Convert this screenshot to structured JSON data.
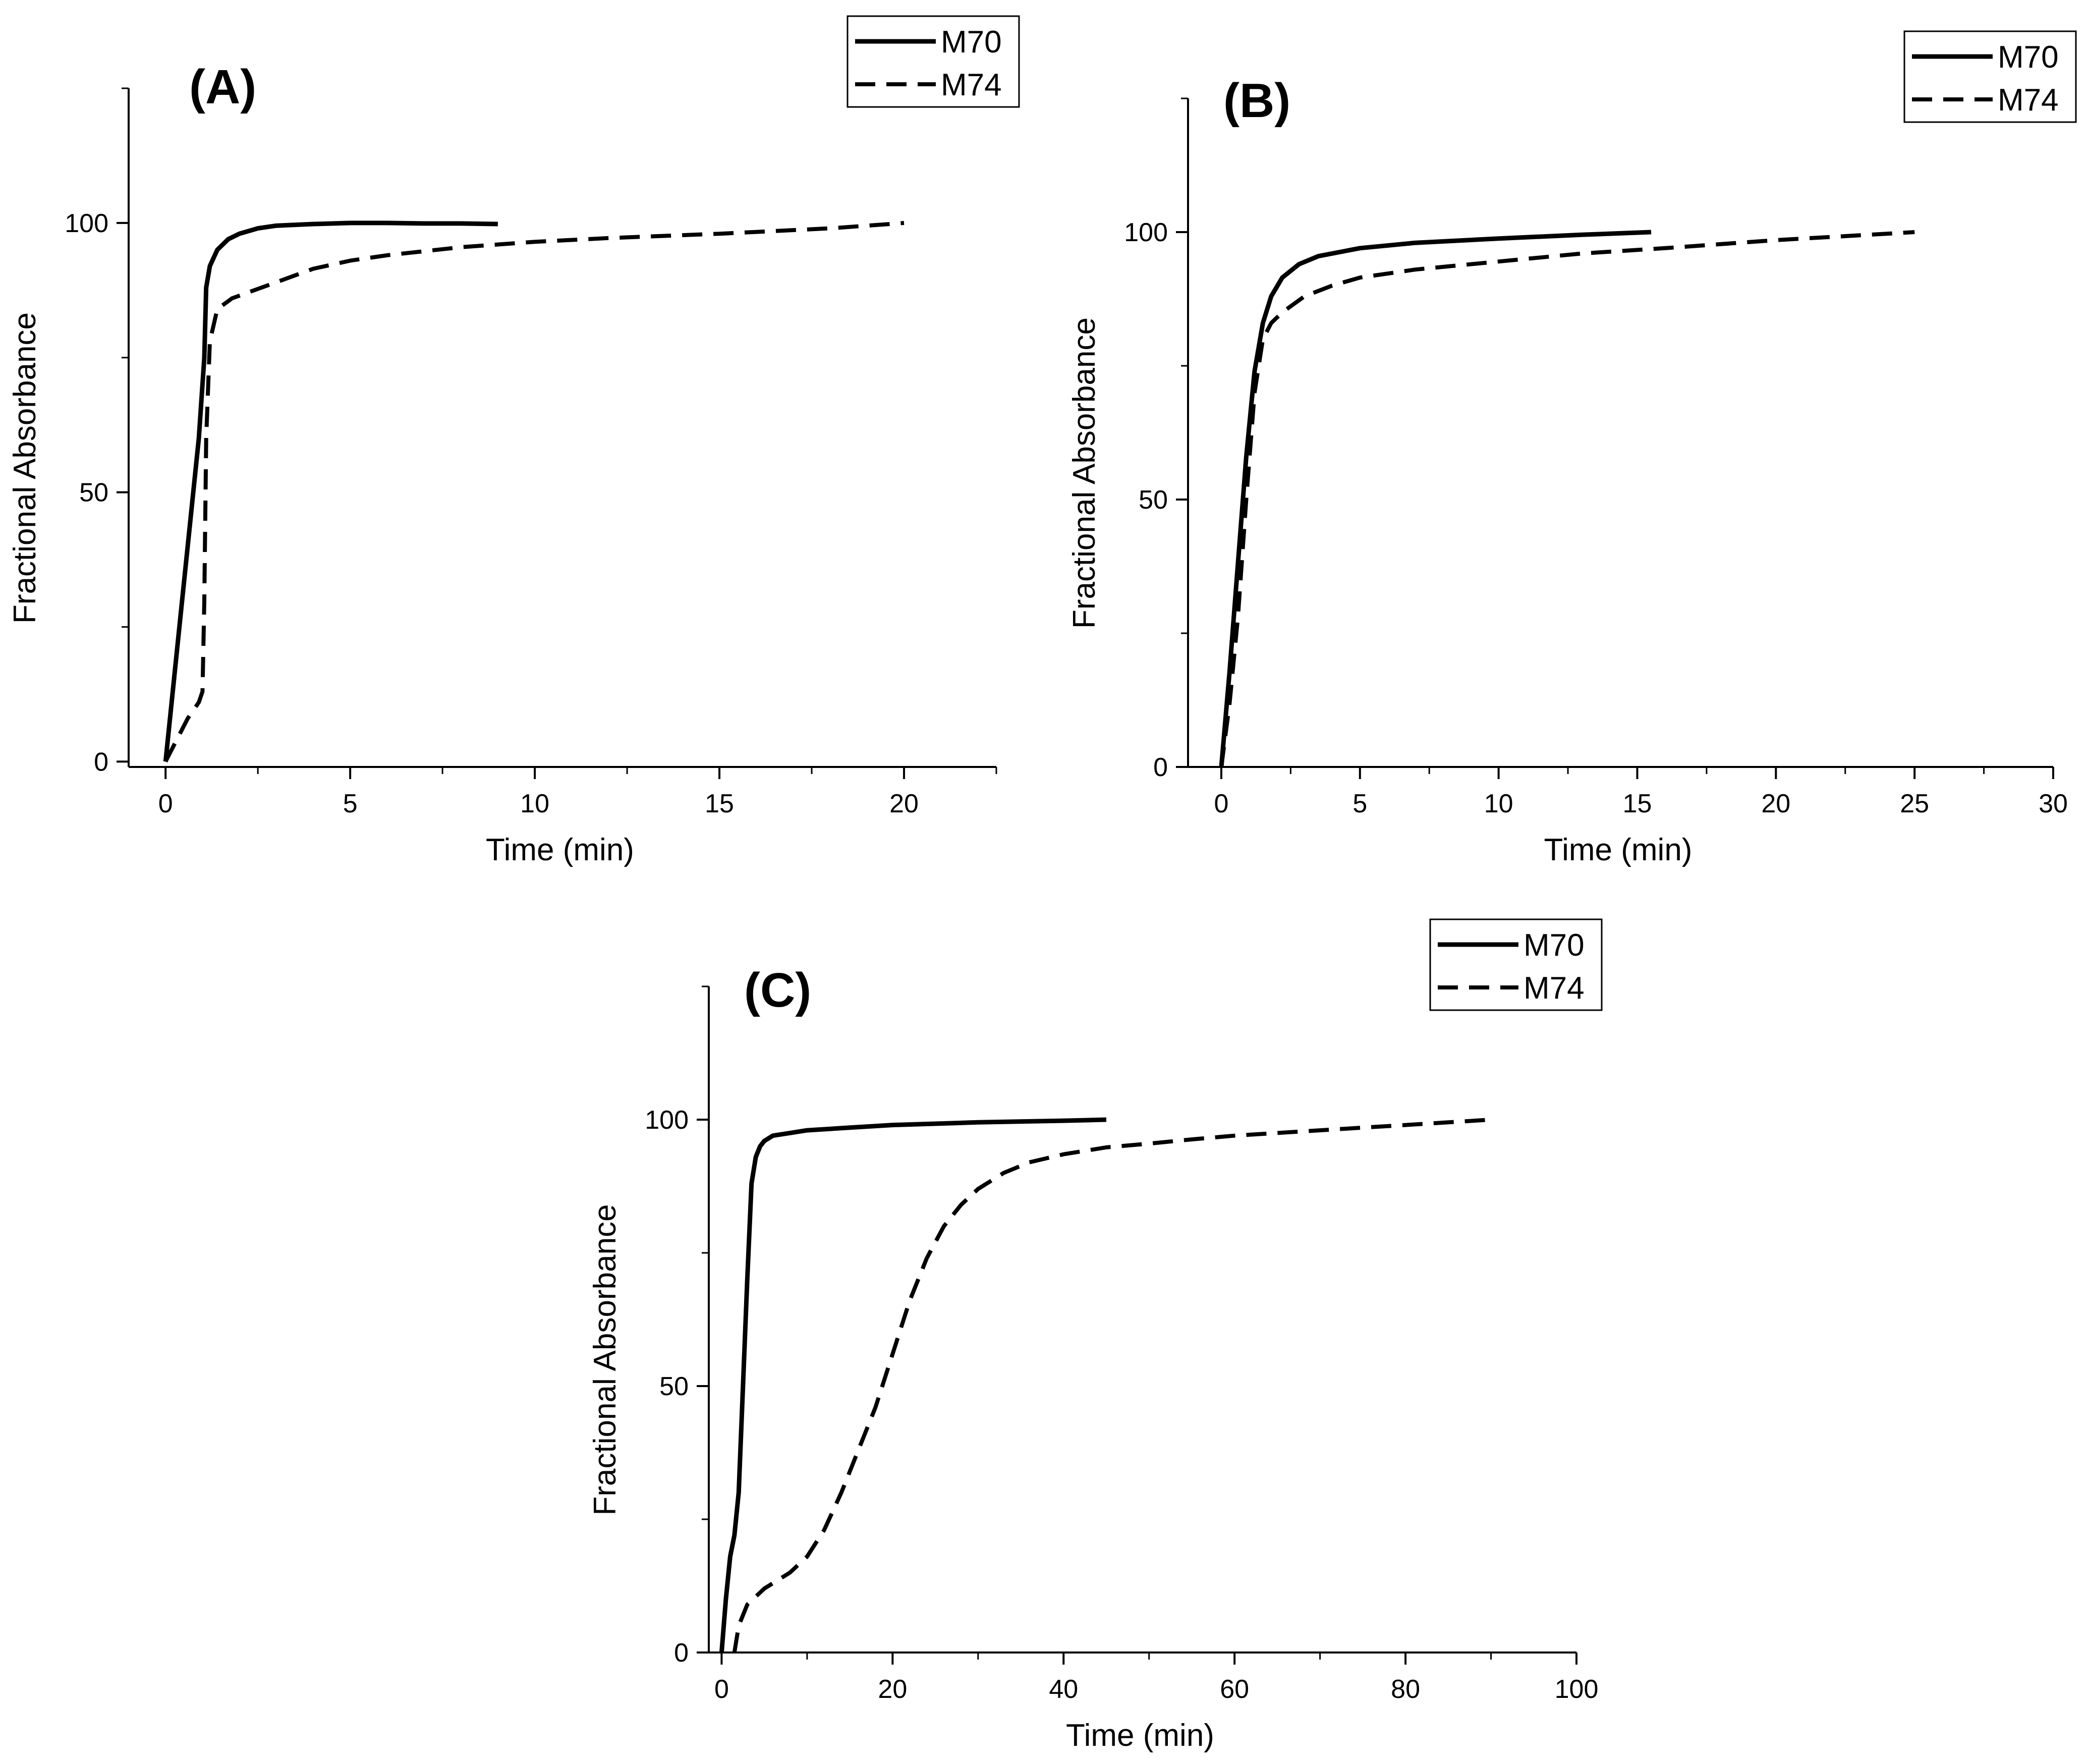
{
  "chart_data": [
    {
      "type": "line",
      "panel_label": "(A)",
      "xlabel": "Time (min)",
      "ylabel": "Fractional Absorbance",
      "xlim": [
        -1,
        22.5
      ],
      "ylim": [
        -1,
        125
      ],
      "xticks": [
        0,
        5,
        10,
        15,
        20
      ],
      "yticks": [
        0,
        50,
        100
      ],
      "legend_position": "top-right",
      "series": [
        {
          "name": "M70",
          "style": "solid",
          "x": [
            0,
            0.3,
            0.6,
            0.9,
            1.05,
            1.1,
            1.2,
            1.4,
            1.7,
            2.0,
            2.5,
            3,
            4,
            5,
            6,
            7,
            8,
            9
          ],
          "y": [
            0,
            20,
            40,
            60,
            75,
            88,
            92,
            95,
            97,
            98,
            99,
            99.5,
            99.8,
            100,
            100,
            99.9,
            99.9,
            99.8
          ]
        },
        {
          "name": "M74",
          "style": "dashed",
          "x": [
            0,
            0.3,
            0.6,
            0.9,
            1.0,
            1.05,
            1.1,
            1.2,
            1.4,
            1.8,
            2.2,
            3,
            4,
            5,
            6,
            8,
            10,
            12,
            15,
            18,
            20
          ],
          "y": [
            0,
            4,
            8,
            11,
            13,
            30,
            60,
            78,
            84,
            86,
            87,
            89,
            91.5,
            93,
            94,
            95.5,
            96.5,
            97.2,
            98,
            99,
            100
          ]
        }
      ]
    },
    {
      "type": "line",
      "panel_label": "(B)",
      "xlabel": "Time (min)",
      "ylabel": "Fractional Absorbance",
      "xlim": [
        -1.2,
        30
      ],
      "ylim": [
        0,
        125
      ],
      "xticks": [
        0,
        5,
        10,
        15,
        20,
        25,
        30
      ],
      "yticks": [
        0,
        50,
        100
      ],
      "legend_position": "top-right",
      "series": [
        {
          "name": "M70",
          "style": "solid",
          "x": [
            0,
            0.3,
            0.6,
            0.9,
            1.2,
            1.5,
            1.8,
            2.2,
            2.8,
            3.5,
            5,
            7,
            10,
            13,
            15.5
          ],
          "y": [
            0,
            18,
            38,
            58,
            74,
            83,
            88,
            91.5,
            94,
            95.5,
            97,
            98,
            98.8,
            99.5,
            100
          ]
        },
        {
          "name": "M74",
          "style": "dashed",
          "x": [
            0,
            0.3,
            0.6,
            0.9,
            1.2,
            1.5,
            1.8,
            2.2,
            3,
            4,
            5,
            7,
            10,
            13,
            16,
            20,
            25
          ],
          "y": [
            0,
            12,
            28,
            50,
            70,
            80,
            83,
            85,
            88,
            90,
            91.5,
            93,
            94.5,
            96,
            97,
            98.5,
            100
          ]
        }
      ]
    },
    {
      "type": "line",
      "panel_label": "(C)",
      "xlabel": "Time (min)",
      "ylabel": "Fractional Absorbance",
      "xlim": [
        -1.5,
        100
      ],
      "ylim": [
        0,
        125
      ],
      "xticks": [
        0,
        20,
        40,
        60,
        80,
        100
      ],
      "yticks": [
        0,
        50,
        100
      ],
      "legend_position": "top-right",
      "series": [
        {
          "name": "M70",
          "style": "solid",
          "x": [
            0,
            0.5,
            1,
            1.5,
            2,
            2.5,
            3,
            3.5,
            4,
            4.5,
            5,
            6,
            8,
            10,
            15,
            20,
            30,
            40,
            45
          ],
          "y": [
            0,
            10,
            18,
            22,
            30,
            50,
            70,
            88,
            93,
            95,
            96,
            97,
            97.5,
            98,
            98.5,
            99,
            99.5,
            99.8,
            100
          ]
        },
        {
          "name": "M74",
          "style": "dashed",
          "x": [
            1.5,
            2,
            3,
            5,
            8,
            10,
            12,
            14,
            16,
            18,
            20,
            22,
            24,
            26,
            28,
            30,
            33,
            36,
            40,
            45,
            50,
            55,
            60,
            65,
            70,
            75,
            80,
            85,
            90
          ],
          "y": [
            0,
            5,
            9,
            12,
            15,
            18,
            23,
            30,
            38,
            46,
            56,
            66,
            74,
            80,
            84,
            87,
            90,
            92,
            93.5,
            94.8,
            95.5,
            96.3,
            97,
            97.5,
            98,
            98.5,
            99,
            99.5,
            100
          ]
        }
      ]
    }
  ]
}
